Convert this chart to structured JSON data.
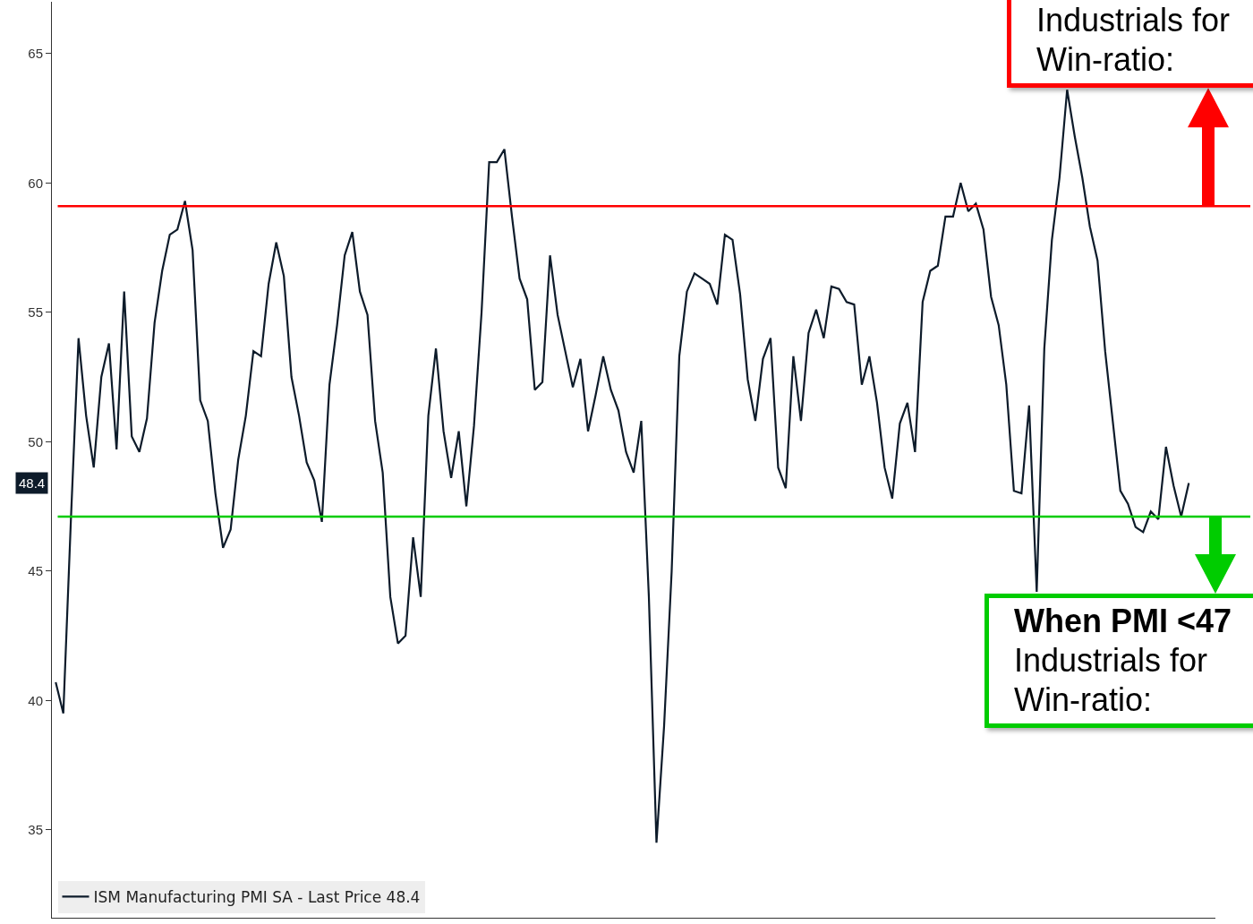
{
  "chart_data": {
    "type": "line",
    "categories": [
      null,
      null,
      null,
      null,
      null,
      null,
      null,
      null,
      null,
      null,
      null,
      null,
      null,
      null,
      null,
      null,
      null,
      null,
      null,
      null,
      null,
      null,
      null,
      null,
      null,
      null,
      null,
      null,
      null,
      null,
      null,
      null,
      null,
      null,
      null,
      null,
      null,
      null,
      null,
      null,
      null,
      null,
      null,
      null,
      null,
      null,
      null,
      null,
      null,
      null,
      null,
      null,
      null,
      null,
      null,
      null,
      null,
      null,
      null,
      null,
      null,
      null,
      null,
      null,
      null,
      null,
      null,
      null,
      null,
      null,
      null,
      null,
      null,
      null,
      null,
      null,
      null,
      null,
      null,
      null,
      null,
      null,
      null,
      null,
      null,
      null,
      null,
      null,
      null,
      null,
      null,
      null,
      null,
      null,
      null,
      null,
      null,
      null,
      null,
      null,
      null,
      null,
      null,
      null,
      null,
      null,
      null,
      null,
      null,
      null,
      null,
      null,
      null,
      null,
      null,
      null,
      null,
      null,
      null,
      null,
      null,
      null,
      null,
      null,
      null,
      null,
      null,
      null,
      null,
      null,
      null,
      null,
      null,
      null,
      null,
      null,
      null,
      null,
      null,
      null,
      null,
      null,
      null,
      null,
      null,
      null,
      null,
      null,
      null,
      null,
      null,
      null,
      null
    ],
    "series": [
      {
        "name": "ISM Manufacturing PMI SA - Last Price 48.4",
        "color": "#0d1b2a",
        "values": [
          40.7,
          39.5,
          47,
          54,
          51,
          49,
          52.5,
          53.8,
          49.7,
          55.8,
          50.2,
          49.6,
          50.9,
          54.6,
          56.6,
          58,
          58.2,
          59.3,
          57.4,
          51.6,
          50.8,
          48,
          45.9,
          46.6,
          49.3,
          51,
          53.5,
          53.3,
          56.1,
          57.7,
          56.4,
          52.5,
          51,
          49.2,
          48.5,
          46.9,
          52.2,
          54.5,
          57.2,
          58.1,
          55.8,
          54.9,
          50.8,
          48.8,
          44,
          42.2,
          42.5,
          46.3,
          44,
          51,
          53.6,
          50.4,
          48.6,
          50.4,
          47.5,
          50.6,
          55,
          60.8,
          60.8,
          61.3,
          58.7,
          56.3,
          55.5,
          52,
          52.3,
          57.2,
          54.9,
          53.5,
          52.1,
          53.2,
          50.4,
          51.8,
          53.3,
          52,
          51.2,
          49.6,
          48.8,
          50.8,
          44,
          34.5,
          39,
          45,
          53.3,
          55.8,
          56.5,
          56.3,
          56.1,
          55.3,
          58,
          57.8,
          55.7,
          52.4,
          50.8,
          53.2,
          54,
          49,
          48.2,
          53.3,
          50.8,
          54.2,
          55.1,
          54,
          56,
          55.9,
          55.4,
          55.3,
          52.2,
          53.3,
          51.5,
          49,
          47.8,
          50.7,
          51.5,
          49.6,
          55.4,
          56.6,
          56.8,
          58.7,
          58.7,
          60,
          58.9,
          59.2,
          58.2,
          55.6,
          54.5,
          52.2,
          48.1,
          48,
          51.4,
          44.2,
          53.6,
          57.8,
          60.2,
          63.6,
          61.8,
          60.2,
          58.3,
          57,
          53.5,
          50.8,
          48.1,
          47.6,
          46.7,
          46.5,
          47.3,
          47,
          49.8,
          48.3,
          47.1,
          48.4,
          null,
          null,
          null
        ]
      }
    ],
    "ylim": [
      31.6,
      67
    ],
    "yticks": [
      35,
      40,
      45,
      50,
      55,
      60,
      65
    ],
    "ref_lines": [
      {
        "axis": "y",
        "value": 59.1,
        "color": "#ff0000"
      },
      {
        "axis": "y",
        "value": 47.1,
        "color": "#00cc00"
      }
    ],
    "annotations": [
      "Industrials for\nWin-ratio:",
      "When PMI <47\nIndustrials for\nWin-ratio:",
      "48.4"
    ],
    "legend": "bottom left",
    "marker": "none",
    "line_style": "solid",
    "tick_labels": "y"
  }
}
